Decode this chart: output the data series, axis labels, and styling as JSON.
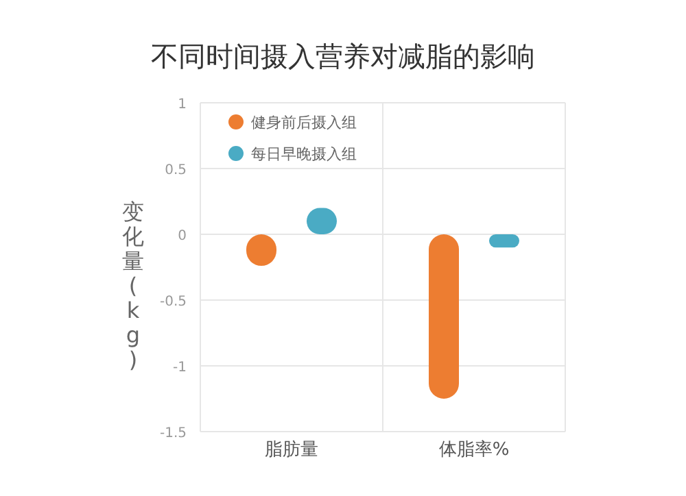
{
  "chart_data": {
    "type": "bar",
    "title": "不同时间摄入营养对减脂的影响",
    "ylabel": "变化量(kg)",
    "categories": [
      "脂肪量",
      "体脂率%"
    ],
    "series": [
      {
        "name": "健身前后摄入组",
        "color": "#ed7d31",
        "values": [
          -0.24,
          -1.25
        ]
      },
      {
        "name": "每日早晚摄入组",
        "color": "#4aabc4",
        "values": [
          0.2,
          -0.1
        ]
      }
    ],
    "ylim": [
      -1.5,
      1
    ],
    "yticks": [
      -1.5,
      -1,
      -0.5,
      0,
      0.5,
      1
    ],
    "grid": true,
    "legend": "top left"
  }
}
